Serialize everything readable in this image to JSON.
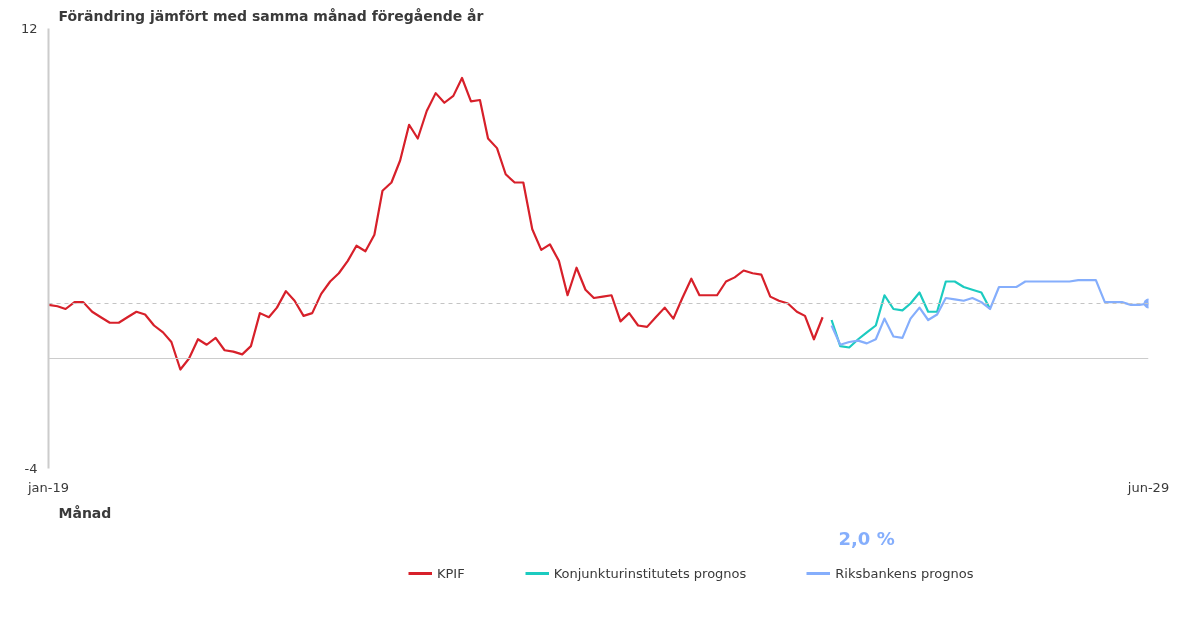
{
  "chart_data": {
    "type": "line",
    "ylabel": "Förändring jämfört med samma månad föregående år",
    "xlabel": "Månad",
    "annotations": [
      "2,0 %"
    ],
    "x": [
      "2019-01",
      "2019-02",
      "2019-03",
      "2019-04",
      "2019-05",
      "2019-06",
      "2019-07",
      "2019-08",
      "2019-09",
      "2019-10",
      "2019-11",
      "2019-12",
      "2020-01",
      "2020-02",
      "2020-03",
      "2020-04",
      "2020-05",
      "2020-06",
      "2020-07",
      "2020-08",
      "2020-09",
      "2020-10",
      "2020-11",
      "2020-12",
      "2021-01",
      "2021-02",
      "2021-03",
      "2021-04",
      "2021-05",
      "2021-06",
      "2021-07",
      "2021-08",
      "2021-09",
      "2021-10",
      "2021-11",
      "2021-12",
      "2022-01",
      "2022-02",
      "2022-03",
      "2022-04",
      "2022-05",
      "2022-06",
      "2022-07",
      "2022-08",
      "2022-09",
      "2022-10",
      "2022-11",
      "2022-12",
      "2023-01",
      "2023-02",
      "2023-03",
      "2023-04",
      "2023-05",
      "2023-06",
      "2023-07",
      "2023-08",
      "2023-09",
      "2023-10",
      "2023-11",
      "2023-12",
      "2024-01",
      "2024-02",
      "2024-03",
      "2024-04",
      "2024-05",
      "2024-06",
      "2024-07",
      "2024-08",
      "2024-09",
      "2024-10",
      "2024-11",
      "2024-12",
      "2025-01",
      "2025-02",
      "2025-03",
      "2025-04",
      "2025-05",
      "2025-06",
      "2025-07",
      "2025-08",
      "2025-09",
      "2025-10",
      "2025-11",
      "2025-12",
      "2026-01",
      "2026-02",
      "2026-03",
      "2026-04",
      "2026-05",
      "2026-06",
      "2026-07",
      "2026-08",
      "2026-09",
      "2026-10",
      "2026-11",
      "2026-12",
      "2027-01",
      "2027-02",
      "2027-03",
      "2027-04",
      "2027-05",
      "2027-06",
      "2027-07",
      "2027-08",
      "2027-09",
      "2027-10",
      "2027-11",
      "2027-12",
      "2028-01",
      "2028-02",
      "2028-03",
      "2028-04",
      "2028-05",
      "2028-06",
      "2028-07",
      "2028-08",
      "2028-09",
      "2028-10",
      "2028-11",
      "2028-12",
      "2029-01",
      "2029-02",
      "2029-03",
      "2029-04",
      "2029-05",
      "2029-06"
    ],
    "series": [
      {
        "name": "KPIF",
        "color": "#d7202a",
        "values": [
          1.95,
          1.9,
          1.8,
          2.05,
          2.05,
          1.7,
          1.5,
          1.3,
          1.3,
          1.5,
          1.7,
          1.6,
          1.2,
          0.95,
          0.6,
          -0.4,
          0.0,
          0.7,
          0.5,
          0.75,
          0.3,
          0.25,
          0.15,
          0.45,
          1.65,
          1.5,
          1.85,
          2.45,
          2.1,
          1.55,
          1.65,
          2.35,
          2.8,
          3.1,
          3.55,
          4.1,
          3.9,
          4.5,
          6.1,
          6.4,
          7.2,
          8.5,
          8.0,
          9.0,
          9.65,
          9.3,
          9.55,
          10.2,
          9.35,
          9.4,
          8.0,
          7.65,
          6.7,
          6.4,
          6.4,
          4.7,
          3.95,
          4.15,
          3.55,
          2.3,
          3.3,
          2.5,
          2.2,
          2.25,
          2.3,
          1.35,
          1.65,
          1.2,
          1.15,
          1.5,
          1.85,
          1.45,
          2.2,
          2.9,
          2.3,
          2.3,
          2.3,
          2.8,
          2.95,
          3.2,
          3.1,
          3.05,
          2.25,
          2.1,
          2.0,
          1.7,
          1.55,
          0.7,
          1.5,
          null,
          null,
          null,
          null,
          null,
          null,
          null,
          null,
          null,
          null,
          null,
          null,
          null,
          null,
          null,
          null,
          null,
          null,
          null,
          null,
          null,
          null,
          null,
          null,
          null,
          null,
          null,
          null,
          null,
          null,
          null,
          null,
          null,
          null,
          null,
          null,
          null
        ]
      },
      {
        "name": "Konjunkturinstitutets prognos",
        "color": "#1ccbc0",
        "values": [
          null,
          null,
          null,
          null,
          null,
          null,
          null,
          null,
          null,
          null,
          null,
          null,
          null,
          null,
          null,
          null,
          null,
          null,
          null,
          null,
          null,
          null,
          null,
          null,
          null,
          null,
          null,
          null,
          null,
          null,
          null,
          null,
          null,
          null,
          null,
          null,
          null,
          null,
          null,
          null,
          null,
          null,
          null,
          null,
          null,
          null,
          null,
          null,
          null,
          null,
          null,
          null,
          null,
          null,
          null,
          null,
          null,
          null,
          null,
          null,
          null,
          null,
          null,
          null,
          null,
          null,
          null,
          null,
          null,
          null,
          null,
          null,
          null,
          null,
          null,
          null,
          null,
          null,
          null,
          null,
          null,
          null,
          null,
          null,
          null,
          null,
          null,
          null,
          null,
          1.4,
          0.45,
          0.4,
          0.7,
          0.95,
          1.2,
          2.3,
          1.8,
          1.75,
          2.0,
          2.4,
          1.7,
          1.7,
          2.8,
          2.8,
          2.6,
          2.5,
          2.4,
          1.8,
          null,
          null,
          null,
          null,
          null,
          null,
          null,
          null,
          null,
          null,
          null,
          null,
          null,
          null,
          null,
          null,
          null,
          null
        ]
      },
      {
        "name": "Riksbankens prognos",
        "color": "#85aefc",
        "values": [
          null,
          null,
          null,
          null,
          null,
          null,
          null,
          null,
          null,
          null,
          null,
          null,
          null,
          null,
          null,
          null,
          null,
          null,
          null,
          null,
          null,
          null,
          null,
          null,
          null,
          null,
          null,
          null,
          null,
          null,
          null,
          null,
          null,
          null,
          null,
          null,
          null,
          null,
          null,
          null,
          null,
          null,
          null,
          null,
          null,
          null,
          null,
          null,
          null,
          null,
          null,
          null,
          null,
          null,
          null,
          null,
          null,
          null,
          null,
          null,
          null,
          null,
          null,
          null,
          null,
          null,
          null,
          null,
          null,
          null,
          null,
          null,
          null,
          null,
          null,
          null,
          null,
          null,
          null,
          null,
          null,
          null,
          null,
          null,
          null,
          null,
          null,
          null,
          null,
          1.2,
          0.5,
          0.6,
          0.65,
          0.55,
          0.7,
          1.45,
          0.8,
          0.75,
          1.45,
          1.85,
          1.4,
          1.6,
          2.2,
          2.15,
          2.1,
          2.2,
          2.05,
          1.8,
          2.6,
          2.6,
          2.6,
          2.8,
          2.8,
          2.8,
          2.8,
          2.8,
          2.8,
          2.85,
          2.85,
          2.85,
          2.05,
          2.05,
          2.05,
          1.95,
          1.95,
          2.0
        ]
      },
      {
        "type": "scatter",
        "marker": "circle",
        "color": "#85aefc",
        "x": [
          "2029-06"
        ],
        "values": [
          2.0
        ]
      }
    ],
    "xlim": [
      "2019-01",
      "2029-06"
    ],
    "xticks": [
      {
        "value": "2019-01",
        "label": "jan-19"
      },
      {
        "value": "2029-06",
        "label": "jun-29"
      }
    ],
    "ylim": [
      -4,
      12
    ],
    "yticks": [
      12,
      -4
    ],
    "ref_lines": [
      {
        "axis": "y",
        "value": 0,
        "color": "#cccccc",
        "line_style": "solid"
      },
      {
        "axis": "y",
        "value": 2,
        "color": "#c4c4c4",
        "line_style": "dashed"
      }
    ],
    "legend": "bottom"
  }
}
